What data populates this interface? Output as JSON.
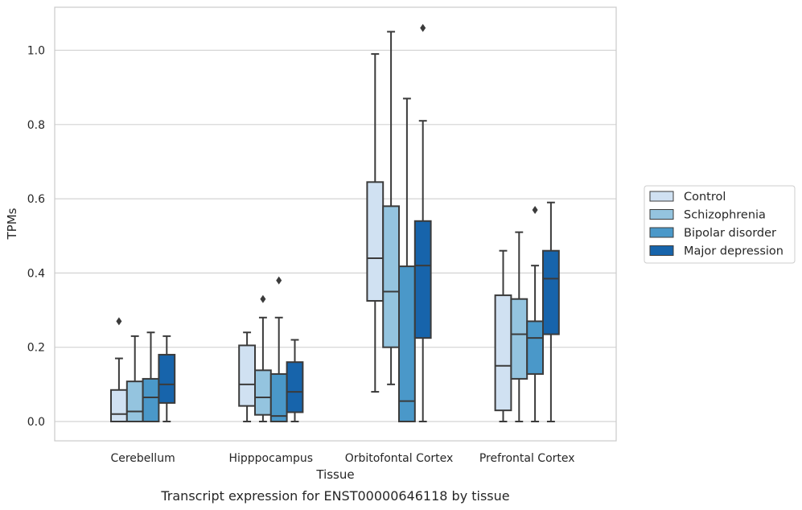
{
  "chart_data": {
    "type": "box",
    "caption": "Transcript expression for ENST00000646118 by tissue",
    "xlabel": "Tissue",
    "ylabel": "TPMs",
    "ylim": [
      -0.05,
      1.115
    ],
    "yticks": [
      0.0,
      0.2,
      0.4,
      0.6,
      0.8,
      1.0
    ],
    "ytick_labels": [
      "0.0",
      "0.2",
      "0.4",
      "0.6",
      "0.8",
      "1.0"
    ],
    "categories": [
      "Cerebellum",
      "Hipppocampus",
      "Orbitofontal Cortex",
      "Prefrontal Cortex"
    ],
    "grid": "horizontal",
    "legend_position": "right, outside plot",
    "series": [
      {
        "name": "Control",
        "color": "#d0e1f2",
        "boxes": [
          {
            "whislo": 0.0,
            "q1": 0.0,
            "med": 0.02,
            "q3": 0.085,
            "whishi": 0.17,
            "fliers": [
              0.27
            ]
          },
          {
            "whislo": 0.0,
            "q1": 0.042,
            "med": 0.1,
            "q3": 0.205,
            "whishi": 0.24,
            "fliers": []
          },
          {
            "whislo": 0.08,
            "q1": 0.325,
            "med": 0.44,
            "q3": 0.645,
            "whishi": 0.99,
            "fliers": []
          },
          {
            "whislo": 0.0,
            "q1": 0.03,
            "med": 0.15,
            "q3": 0.34,
            "whishi": 0.46,
            "fliers": []
          }
        ]
      },
      {
        "name": "Schizophrenia",
        "color": "#94c4df",
        "boxes": [
          {
            "whislo": 0.0,
            "q1": 0.0,
            "med": 0.027,
            "q3": 0.108,
            "whishi": 0.23,
            "fliers": []
          },
          {
            "whislo": 0.0,
            "q1": 0.018,
            "med": 0.065,
            "q3": 0.138,
            "whishi": 0.28,
            "fliers": [
              0.33
            ]
          },
          {
            "whislo": 0.1,
            "q1": 0.2,
            "med": 0.35,
            "q3": 0.58,
            "whishi": 1.05,
            "fliers": []
          },
          {
            "whislo": 0.0,
            "q1": 0.115,
            "med": 0.235,
            "q3": 0.33,
            "whishi": 0.51,
            "fliers": []
          }
        ]
      },
      {
        "name": "Bipolar disorder",
        "color": "#4a98c9",
        "boxes": [
          {
            "whislo": 0.0,
            "q1": 0.0,
            "med": 0.065,
            "q3": 0.115,
            "whishi": 0.24,
            "fliers": []
          },
          {
            "whislo": 0.0,
            "q1": 0.0,
            "med": 0.015,
            "q3": 0.128,
            "whishi": 0.28,
            "fliers": [
              0.38
            ]
          },
          {
            "whislo": 0.0,
            "q1": 0.0,
            "med": 0.055,
            "q3": 0.418,
            "whishi": 0.87,
            "fliers": []
          },
          {
            "whislo": 0.0,
            "q1": 0.128,
            "med": 0.225,
            "q3": 0.27,
            "whishi": 0.42,
            "fliers": [
              0.57
            ]
          }
        ]
      },
      {
        "name": "Major depression",
        "color": "#1764ab",
        "boxes": [
          {
            "whislo": 0.0,
            "q1": 0.05,
            "med": 0.1,
            "q3": 0.18,
            "whishi": 0.23,
            "fliers": []
          },
          {
            "whislo": 0.0,
            "q1": 0.025,
            "med": 0.08,
            "q3": 0.16,
            "whishi": 0.22,
            "fliers": []
          },
          {
            "whislo": 0.0,
            "q1": 0.225,
            "med": 0.42,
            "q3": 0.54,
            "whishi": 0.81,
            "fliers": [
              1.06
            ]
          },
          {
            "whislo": 0.0,
            "q1": 0.235,
            "med": 0.385,
            "q3": 0.46,
            "whishi": 0.59,
            "fliers": []
          }
        ]
      }
    ]
  }
}
